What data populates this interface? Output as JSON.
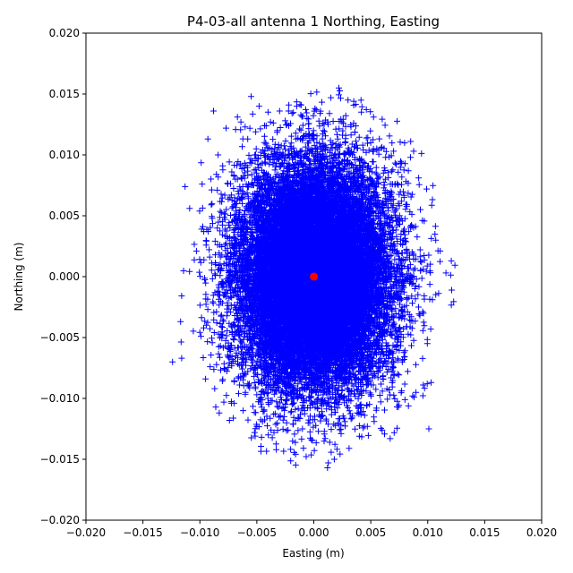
{
  "chart_data": {
    "type": "scatter",
    "title": "P4-03-all antenna 1 Northing, Easting",
    "xlabel": "Easting (m)",
    "ylabel": "Northing (m)",
    "xlim": [
      -0.02,
      0.02
    ],
    "ylim": [
      -0.02,
      0.02
    ],
    "xticks": [
      "−0.020",
      "−0.015",
      "−0.010",
      "−0.005",
      "0.000",
      "0.005",
      "0.010",
      "0.015",
      "0.020"
    ],
    "yticks": [
      "−0.020",
      "−0.015",
      "−0.010",
      "−0.005",
      "0.000",
      "0.005",
      "0.010",
      "0.015",
      "0.020"
    ],
    "grid": false,
    "series": [
      {
        "marker": "plus",
        "color": "#0000ff",
        "distribution": "dense cloud of thousands of points centered near (0, 0)",
        "std_easting": 0.0033,
        "std_northing": 0.0045,
        "x": [
          -0.0124,
          -0.0116,
          -0.0113,
          -0.0109,
          -0.0103,
          -0.0099,
          -0.0098,
          -0.0095,
          -0.0093,
          -0.0091,
          -0.009,
          -0.0088,
          -0.0087,
          -0.0084,
          -0.0083,
          -0.008,
          -0.0079,
          -0.0077,
          -0.0074,
          -0.0072,
          -0.007,
          -0.0067,
          -0.0066,
          -0.0064,
          -0.0062,
          -0.0058,
          -0.0055,
          -0.0052,
          -0.0051,
          -0.005,
          -0.0048,
          -0.0045,
          -0.0042,
          -0.004,
          -0.0038,
          -0.0035,
          -0.003,
          -0.0026,
          -0.0022,
          -0.0018,
          -0.0015,
          -0.001,
          -0.0006,
          -0.0002,
          0.0001,
          0.0004,
          0.0008,
          0.0012,
          0.0015,
          0.0018,
          0.0022,
          0.0024,
          0.0028,
          0.0031,
          0.0035,
          0.004,
          0.0043,
          0.0047,
          0.005,
          0.0053,
          0.0057,
          0.006,
          0.0063,
          0.0067,
          0.007,
          0.0073,
          0.0076,
          0.008,
          0.0083,
          0.0085,
          0.0088,
          0.0092,
          0.0096,
          0.0099,
          0.0101,
          0.0103,
          0.0107,
          0.0111,
          0.0116,
          0.0121,
          -0.0025,
          0.0021,
          0.0014,
          -0.0032,
          0.0038,
          -0.0044,
          0.0009,
          -0.0012,
          0.0045,
          -0.006,
          0.0055,
          0.0002
        ],
        "y": [
          -0.007,
          -0.0067,
          0.0074,
          0.0056,
          0.0021,
          -0.0049,
          0.0076,
          -0.0084,
          0.0113,
          -0.0074,
          0.0059,
          0.0136,
          -0.0092,
          0.01,
          -0.0112,
          0.0091,
          -0.0103,
          0.0122,
          -0.0118,
          0.0086,
          -0.0104,
          0.0131,
          -0.0096,
          0.0127,
          -0.011,
          0.0113,
          0.0148,
          -0.0128,
          0.0119,
          -0.0123,
          0.014,
          -0.0119,
          0.0109,
          -0.013,
          0.0127,
          -0.0128,
          0.0136,
          -0.0115,
          0.0124,
          -0.0121,
          0.014,
          -0.0125,
          0.013,
          -0.0134,
          0.0138,
          -0.0127,
          0.0126,
          -0.0157,
          0.0147,
          -0.015,
          0.0155,
          -0.0129,
          0.0116,
          -0.0141,
          0.0126,
          -0.0131,
          0.0108,
          -0.0123,
          0.011,
          -0.0119,
          0.0104,
          -0.0126,
          0.0098,
          -0.0133,
          0.0103,
          -0.0107,
          0.0093,
          -0.0101,
          0.0087,
          0.0111,
          -0.0099,
          0.0081,
          -0.0089,
          0.0072,
          -0.0125,
          -0.0087,
          0.003,
          0.0021,
          0.0003,
          -0.0011,
          -0.0105,
          0.0113,
          -0.0136,
          0.012,
          -0.0112,
          -0.0095,
          0.0125,
          0.0095,
          0.0093,
          -0.0095,
          -0.0108,
          -0.0085
        ]
      },
      {
        "marker": "circle",
        "color": "#ff0000",
        "x": [
          0.0
        ],
        "y": [
          0.0
        ]
      }
    ]
  }
}
